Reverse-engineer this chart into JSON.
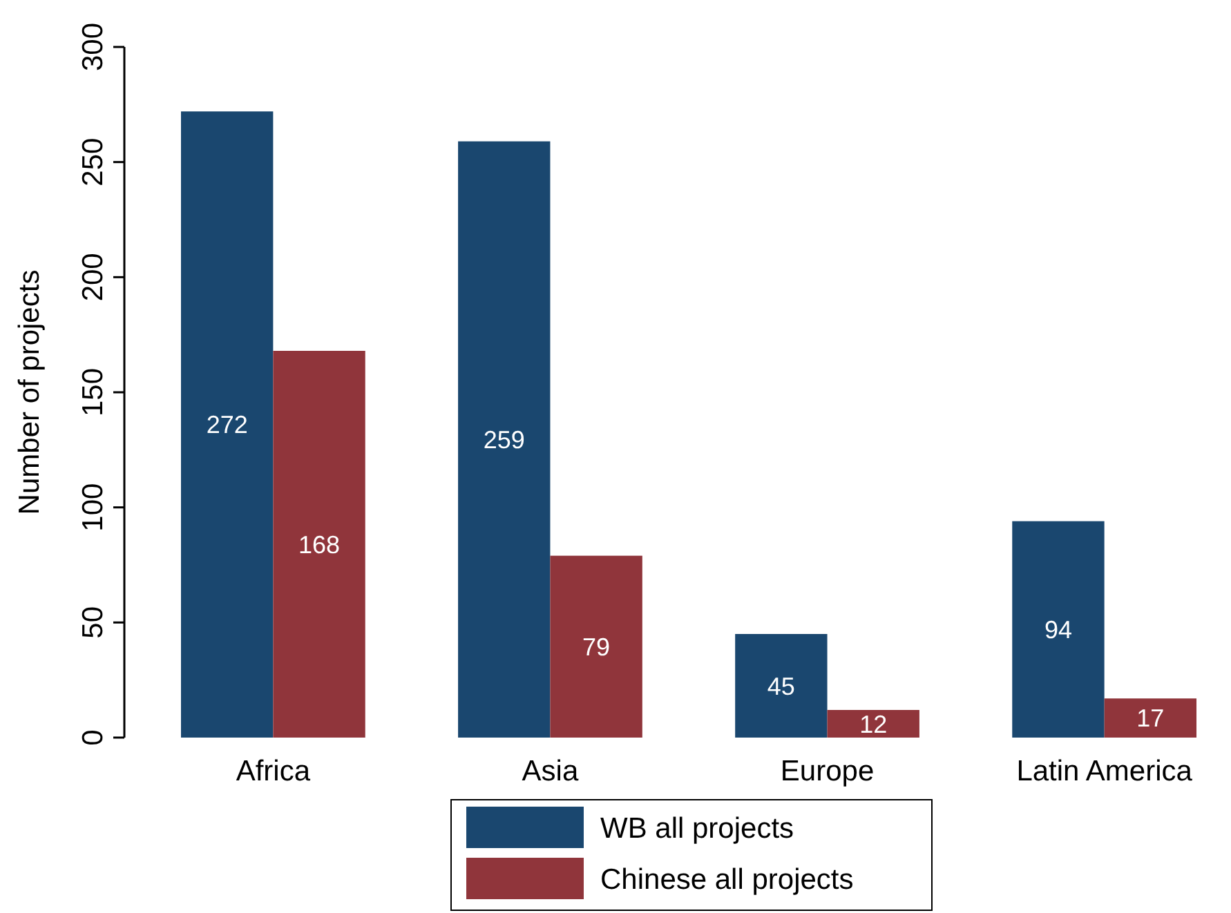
{
  "chart_data": {
    "type": "bar",
    "ylabel": "Number of projects",
    "categories": [
      "Africa",
      "Asia",
      "Europe",
      "Latin America"
    ],
    "series": [
      {
        "name": "WB all projects",
        "color": "#1a476f",
        "values": [
          272,
          259,
          45,
          94
        ]
      },
      {
        "name": "Chinese all projects",
        "color": "#90353b",
        "values": [
          168,
          79,
          12,
          17
        ]
      }
    ],
    "ylim": [
      0,
      300
    ],
    "yticks": [
      0,
      50,
      100,
      150,
      200,
      250,
      300
    ],
    "grid": false,
    "legend": "bottom",
    "data_labels": true
  }
}
